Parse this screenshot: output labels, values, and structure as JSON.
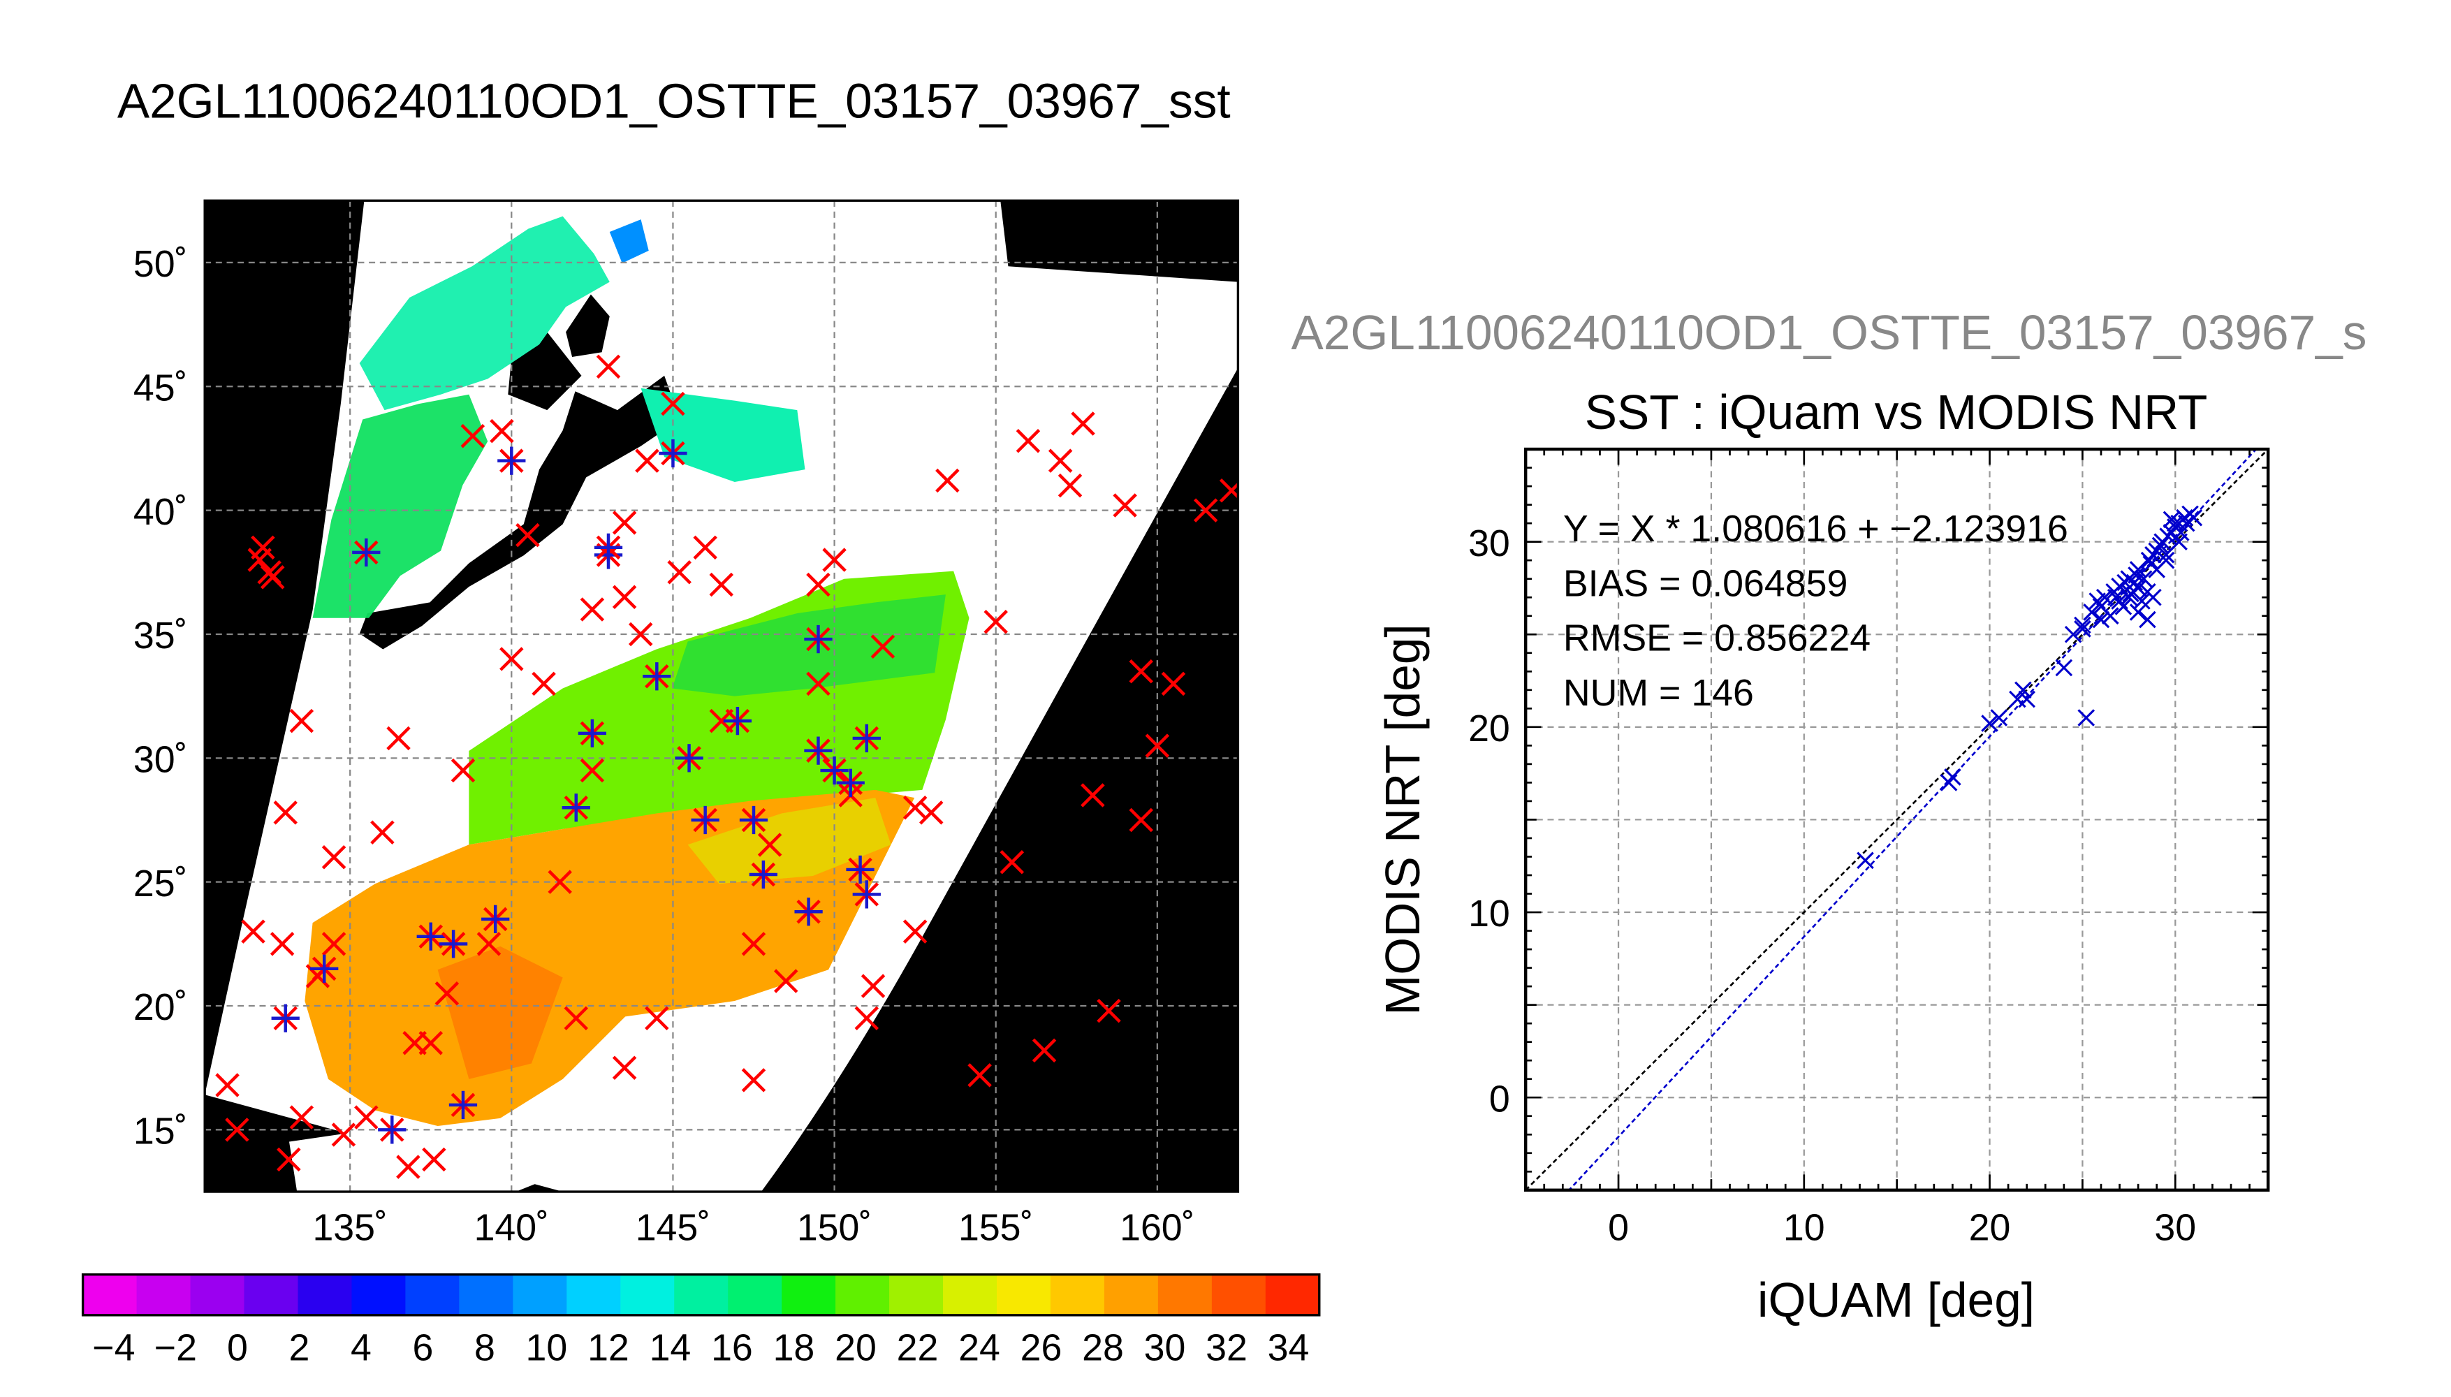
{
  "map": {
    "title": "A2GL11006240110OD1_OSTTE_03157_03967_sst",
    "lon_range": [
      130.5,
      162.5
    ],
    "lat_range": [
      12.5,
      52.5
    ],
    "lon_ticks": [
      135,
      140,
      145,
      150,
      155,
      160
    ],
    "lat_ticks": [
      15,
      20,
      25,
      30,
      35,
      40,
      45,
      50
    ],
    "lon_tick_labels": [
      "135˚",
      "140˚",
      "145˚",
      "150˚",
      "155˚",
      "160˚"
    ],
    "lat_tick_labels": [
      "15˚",
      "20˚",
      "25˚",
      "30˚",
      "35˚",
      "40˚",
      "45˚",
      "50˚"
    ],
    "grid": true,
    "marker_colors": {
      "x_marker": "#ff0000",
      "star_marker": "#1a1acc"
    },
    "colorbar": {
      "range": [
        -5,
        35
      ],
      "tick_labels": [
        "−4",
        "−2",
        "0",
        "2",
        "4",
        "6",
        "8",
        "10",
        "12",
        "14",
        "16",
        "18",
        "20",
        "22",
        "24",
        "26",
        "28",
        "30",
        "32",
        "34"
      ],
      "colors": [
        "#ee00ee",
        "#c800f0",
        "#9b00f0",
        "#6a00f0",
        "#2a00f0",
        "#0010ff",
        "#0040ff",
        "#0070ff",
        "#00a0ff",
        "#00d0ff",
        "#00f0e0",
        "#00f0a0",
        "#00f070",
        "#10f010",
        "#60f000",
        "#a0f000",
        "#d8f000",
        "#f8e800",
        "#ffc800",
        "#ffa000",
        "#ff7800",
        "#ff5000",
        "#ff2800"
      ]
    }
  },
  "scatter": {
    "subtitle": "A2GL11006240110OD1_OSTTE_03157_03967_s",
    "title": "SST : iQuam vs MODIS NRT",
    "xlabel": "iQUAM [deg]",
    "ylabel": "MODIS NRT [deg]",
    "stats": [
      "Y = X * 1.080616 + −2.123916",
      "BIAS = 0.064859",
      "RMSE = 0.856224",
      "NUM = 146"
    ]
  },
  "chart_data": [
    {
      "type": "scatter",
      "title": "A2GL11006240110OD1_OSTTE_03157_03967_sst",
      "xlabel": "",
      "ylabel": "",
      "xlim": [
        130.5,
        162.5
      ],
      "ylim": [
        12.5,
        52.5
      ],
      "series": [
        {
          "name": "",
          "marker": "x",
          "color": "#ff0000",
          "x": [
            131.2,
            131.5,
            132.2,
            132.6,
            132.9,
            133.1,
            133.5,
            134.0,
            134.5,
            134.8,
            136.8,
            137.0,
            137.6,
            138.0,
            139.3,
            139.7,
            141.0,
            142.0,
            142.5,
            143.0,
            143.5,
            144.0,
            144.5,
            145.0,
            145.2,
            146.0,
            146.5,
            147.5,
            148.5,
            149.5,
            150.0,
            151.2,
            152.5,
            153.5,
            154.5,
            155.5,
            156.0,
            156.5,
            157.0,
            157.3,
            157.7,
            158.5,
            159.0,
            159.5,
            160.0,
            160.5,
            161.5,
            162.3,
            132.3,
            132.5,
            133.0,
            135.5,
            136.0,
            137.5,
            138.5,
            140.5,
            142.5,
            143.5,
            144.2,
            145.5,
            146.5,
            148.0,
            149.5,
            150.5,
            151.5,
            152.5,
            153.0,
            138.8,
            140.0,
            141.5,
            143.5,
            147.5,
            151.0,
            158.0,
            159.5,
            133.5,
            136.5,
            132.0,
            134.5,
            155.0
          ],
          "y": [
            16.8,
            15.0,
            38.0,
            37.3,
            22.5,
            13.8,
            15.5,
            21.2,
            22.5,
            14.8,
            13.5,
            18.5,
            13.8,
            20.5,
            22.5,
            43.2,
            33.0,
            19.5,
            29.5,
            45.8,
            36.5,
            35.0,
            19.5,
            44.3,
            37.5,
            38.5,
            37.0,
            22.5,
            21.0,
            37.0,
            38.0,
            20.8,
            28.0,
            41.2,
            17.2,
            25.8,
            42.8,
            18.2,
            42.0,
            41.0,
            43.5,
            19.8,
            40.2,
            33.5,
            30.5,
            33.0,
            40.0,
            40.8,
            38.5,
            37.5,
            27.8,
            15.5,
            27.0,
            18.5,
            29.5,
            39.0,
            36.0,
            39.5,
            42.0,
            30.0,
            31.5,
            26.5,
            33.0,
            28.5,
            34.5,
            23.0,
            27.8,
            43.0,
            34.0,
            25.0,
            17.5,
            17.0,
            19.5,
            28.5,
            27.5,
            31.5,
            30.8,
            23.0,
            26.0,
            35.5
          ]
        },
        {
          "name": "",
          "marker": "asterisk",
          "color": "#1a1acc",
          "x": [
            133.0,
            134.2,
            135.5,
            136.3,
            137.5,
            138.2,
            138.5,
            139.5,
            140.0,
            142.0,
            142.5,
            143.0,
            144.5,
            145.0,
            146.0,
            147.5,
            147.8,
            149.5,
            150.0,
            150.5,
            150.8,
            151.0,
            149.5,
            151.0,
            143.0,
            145.5,
            147.0,
            149.2
          ],
          "y": [
            19.5,
            21.5,
            38.3,
            15.0,
            22.8,
            22.5,
            16.0,
            23.5,
            42.0,
            28.0,
            31.0,
            38.2,
            33.3,
            42.3,
            27.5,
            27.5,
            25.3,
            34.8,
            29.5,
            29.0,
            25.5,
            30.8,
            30.3,
            24.5,
            38.5,
            30.0,
            31.5,
            23.8
          ]
        }
      ]
    },
    {
      "type": "scatter",
      "title": "SST : iQuam vs MODIS NRT",
      "xlabel": "iQUAM [deg]",
      "ylabel": "MODIS NRT [deg]",
      "xlim": [
        -5,
        35
      ],
      "ylim": [
        -5,
        35
      ],
      "x_ticks": [
        0,
        10,
        20,
        30
      ],
      "y_ticks": [
        0,
        10,
        20,
        30
      ],
      "grid": true,
      "series": [
        {
          "name": "",
          "marker": "x",
          "color": "#0000cc",
          "x": [
            13.3,
            17.8,
            18.0,
            20.0,
            20.5,
            21.5,
            21.8,
            22.0,
            24.0,
            24.5,
            25.0,
            25.2,
            25.5,
            25.8,
            26.0,
            26.2,
            26.5,
            26.7,
            26.8,
            27.0,
            27.2,
            27.3,
            27.5,
            27.6,
            27.8,
            27.9,
            28.0,
            28.0,
            28.2,
            28.3,
            28.5,
            28.6,
            28.7,
            28.8,
            29.0,
            29.0,
            29.2,
            29.3,
            29.5,
            29.6,
            29.8,
            30.0,
            30.0,
            30.2,
            30.3,
            30.5,
            30.6,
            30.8,
            31.0,
            25.0,
            26.5,
            27.0,
            28.5,
            29.5,
            28.0,
            27.5,
            26.0,
            28.8,
            30.2,
            29.8
          ],
          "y": [
            12.8,
            17.0,
            17.3,
            20.2,
            20.5,
            21.5,
            22.0,
            21.5,
            23.2,
            25.0,
            25.3,
            20.5,
            26.2,
            26.8,
            26.5,
            27.0,
            26.0,
            27.3,
            27.0,
            27.6,
            26.5,
            27.8,
            28.0,
            27.2,
            27.8,
            28.2,
            28.5,
            27.5,
            26.8,
            28.0,
            25.8,
            29.0,
            28.8,
            29.3,
            28.5,
            29.5,
            29.8,
            30.0,
            29.3,
            30.3,
            30.5,
            30.8,
            31.0,
            31.0,
            30.5,
            31.3,
            31.0,
            31.5,
            31.3,
            25.5,
            26.0,
            26.8,
            27.3,
            29.0,
            26.2,
            27.0,
            25.8,
            27.0,
            30.0,
            31.2
          ]
        }
      ],
      "lines": [
        {
          "name": "",
          "slope": 1.0,
          "intercept": 0.0,
          "color": "#000000"
        },
        {
          "name": "",
          "slope": 1.080616,
          "intercept": -2.123916,
          "color": "#0000cc"
        }
      ]
    }
  ]
}
